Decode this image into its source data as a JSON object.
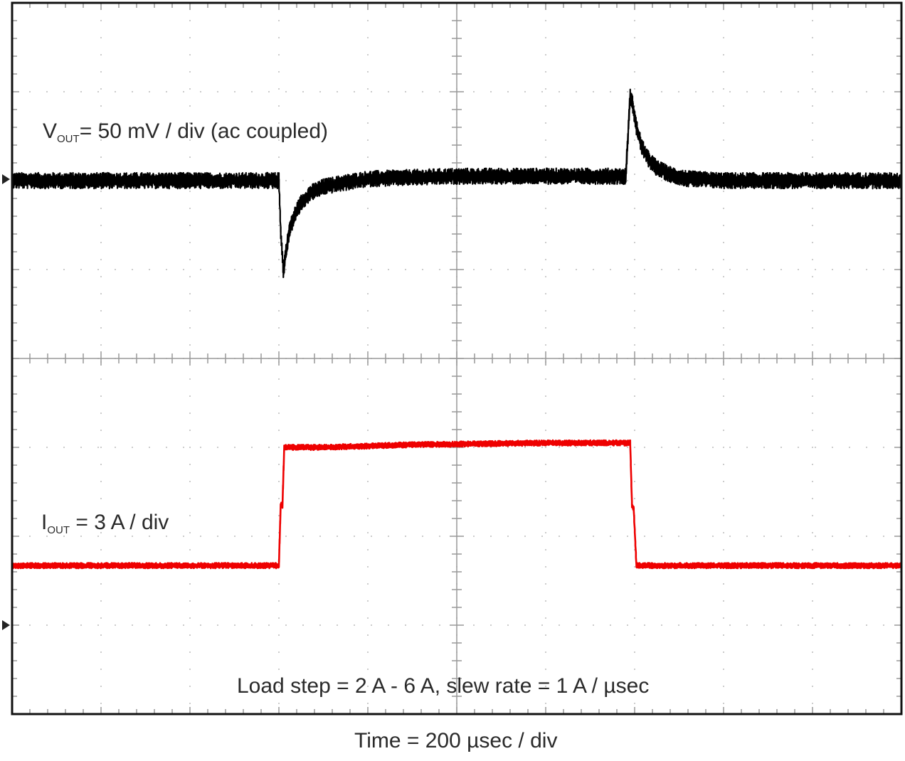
{
  "chart_data": {
    "type": "line",
    "title": "",
    "xlabel": "Time = 200 µsec / div",
    "annotations": {
      "vout": {
        "symbol": "V",
        "subscript": "OUT",
        "text": "= 50 mV / div (ac coupled)"
      },
      "iout": {
        "symbol": "I",
        "subscript": "OUT",
        "text": "= 3 A / div"
      },
      "load_step": "Load step = 2 A - 6 A, slew rate = 1 A / µsec"
    },
    "grid": true,
    "divisions": {
      "x": 10,
      "y": 8
    },
    "xlim_div": [
      0,
      10
    ],
    "ylim_div": [
      0,
      8
    ],
    "series": [
      {
        "color": "#000000",
        "x_div": [
          0,
          3.0,
          3.02,
          3.05,
          3.08,
          3.12,
          3.18,
          3.25,
          3.35,
          3.5,
          3.7,
          4.0,
          5.0,
          6.0,
          6.9,
          6.95,
          6.98,
          7.02,
          7.08,
          7.15,
          7.25,
          7.4,
          7.6,
          8.0,
          9.0,
          10.0
        ],
        "y_div": [
          6.0,
          6.0,
          5.45,
          4.98,
          5.2,
          5.45,
          5.62,
          5.75,
          5.86,
          5.93,
          5.97,
          6.02,
          6.05,
          6.05,
          6.05,
          6.95,
          6.85,
          6.6,
          6.38,
          6.25,
          6.14,
          6.07,
          6.02,
          6.0,
          6.0,
          6.0
        ],
        "noise_div": 0.09
      },
      {
        "color": "#ee0000",
        "x_div": [
          0,
          3.0,
          3.02,
          3.04,
          3.06,
          3.5,
          4.5,
          6.0,
          6.95,
          6.97,
          6.99,
          7.02,
          10.0
        ],
        "y_div": [
          1.67,
          1.67,
          2.35,
          2.35,
          3.0,
          3.0,
          3.03,
          3.05,
          3.05,
          2.35,
          2.3,
          1.67,
          1.67
        ],
        "noise_div": 0.03
      }
    ]
  }
}
